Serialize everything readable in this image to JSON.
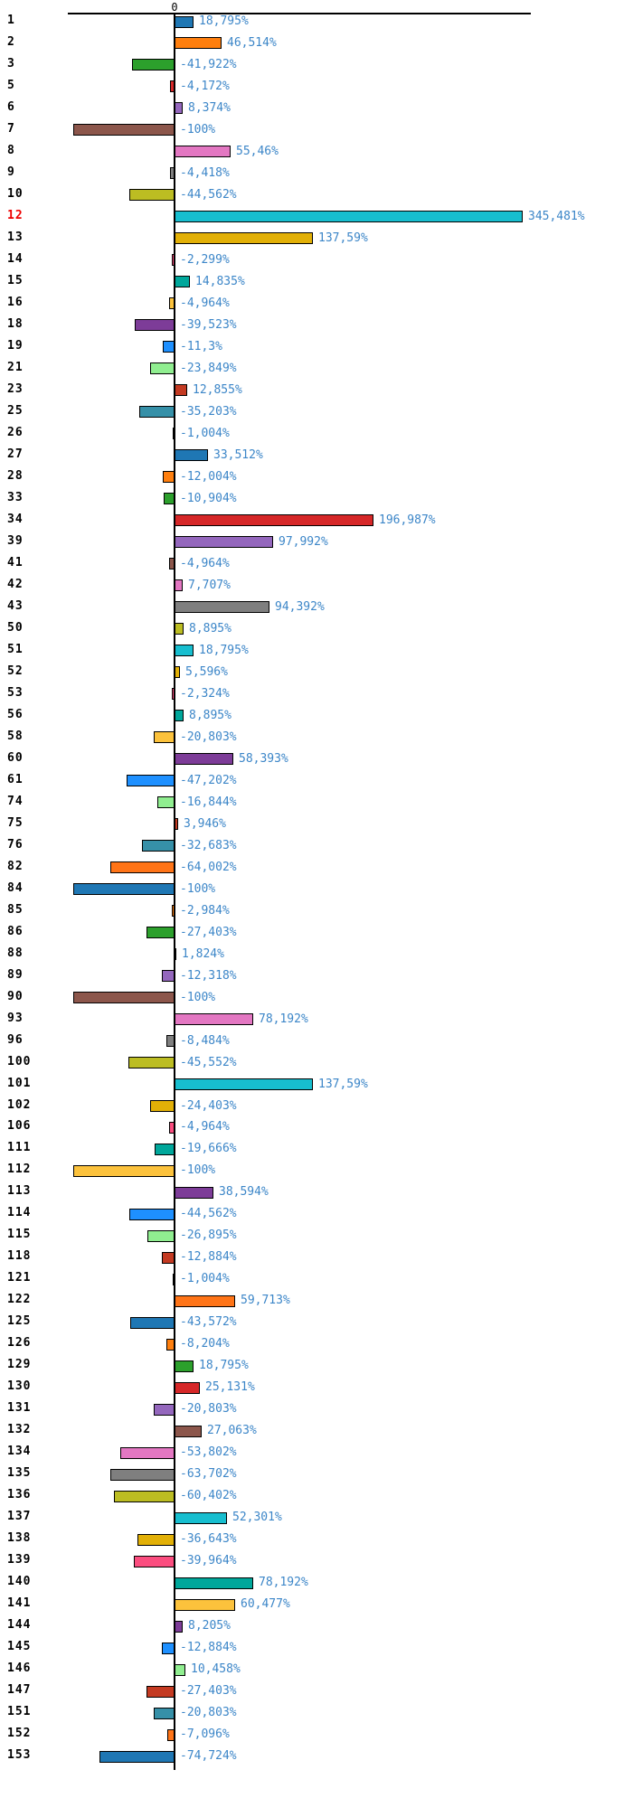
{
  "chart_data": {
    "type": "bar",
    "orientation": "horizontal",
    "title": "",
    "xlabel": "",
    "ylabel": "",
    "x_zero_label": "0",
    "value_suffix": "%",
    "decimal_separator": ",",
    "grid": false,
    "legend": false,
    "xlim": [
      -173,
      455
    ],
    "axis_color": "#000000",
    "value_label_color": "#3c86c8",
    "row_label_color": "#000000",
    "highlight_row_label_color": "#ee0000",
    "palette_cycle": [
      "#1f77b4",
      "#ff7f0e",
      "#2ca02c",
      "#d62728",
      "#9467bd",
      "#8c564b",
      "#e377c2",
      "#7f7f7f",
      "#bcbd22",
      "#17becf",
      "#e2b007",
      "#fb4d7f",
      "#00a79b",
      "#fcc23c",
      "#7d3c98",
      "#1e90ff",
      "#90ee90",
      "#c43a22",
      "#3690a8",
      "#ff7417"
    ],
    "rows": [
      {
        "label": "1",
        "value": 18.795,
        "display": "18,795%",
        "color": "#1f77b4",
        "highlight": false
      },
      {
        "label": "2",
        "value": 46.514,
        "display": "46,514%",
        "color": "#ff7f0e",
        "highlight": false
      },
      {
        "label": "3",
        "value": -41.922,
        "display": "-41,922%",
        "color": "#2ca02c",
        "highlight": false
      },
      {
        "label": "5",
        "value": -4.172,
        "display": "-4,172%",
        "color": "#d62728",
        "highlight": false
      },
      {
        "label": "6",
        "value": 8.374,
        "display": "8,374%",
        "color": "#9467bd",
        "highlight": false
      },
      {
        "label": "7",
        "value": -100,
        "display": "-100%",
        "color": "#8c564b",
        "highlight": false
      },
      {
        "label": "8",
        "value": 55.46,
        "display": "55,46%",
        "color": "#e377c2",
        "highlight": false
      },
      {
        "label": "9",
        "value": -4.418,
        "display": "-4,418%",
        "color": "#7f7f7f",
        "highlight": false
      },
      {
        "label": "10",
        "value": -44.562,
        "display": "-44,562%",
        "color": "#bcbd22",
        "highlight": false
      },
      {
        "label": "12",
        "value": 345.481,
        "display": "345,481%",
        "color": "#17becf",
        "highlight": true
      },
      {
        "label": "13",
        "value": 137.59,
        "display": "137,59%",
        "color": "#e2b007",
        "highlight": false
      },
      {
        "label": "14",
        "value": -2.299,
        "display": "-2,299%",
        "color": "#fb4d7f",
        "highlight": false
      },
      {
        "label": "15",
        "value": 14.835,
        "display": "14,835%",
        "color": "#00a79b",
        "highlight": false
      },
      {
        "label": "16",
        "value": -4.964,
        "display": "-4,964%",
        "color": "#fcc23c",
        "highlight": false
      },
      {
        "label": "18",
        "value": -39.523,
        "display": "-39,523%",
        "color": "#7d3c98",
        "highlight": false
      },
      {
        "label": "19",
        "value": -11.3,
        "display": "-11,3%",
        "color": "#1e90ff",
        "highlight": false
      },
      {
        "label": "21",
        "value": -23.849,
        "display": "-23,849%",
        "color": "#90ee90",
        "highlight": false
      },
      {
        "label": "23",
        "value": 12.855,
        "display": "12,855%",
        "color": "#c43a22",
        "highlight": false
      },
      {
        "label": "25",
        "value": -35.203,
        "display": "-35,203%",
        "color": "#3690a8",
        "highlight": false
      },
      {
        "label": "26",
        "value": -1.004,
        "display": "-1,004%",
        "color": "#ff7417",
        "highlight": false
      },
      {
        "label": "27",
        "value": 33.512,
        "display": "33,512%",
        "color": "#1f77b4",
        "highlight": false
      },
      {
        "label": "28",
        "value": -12.004,
        "display": "-12,004%",
        "color": "#ff7f0e",
        "highlight": false
      },
      {
        "label": "33",
        "value": -10.904,
        "display": "-10,904%",
        "color": "#2ca02c",
        "highlight": false
      },
      {
        "label": "34",
        "value": 196.987,
        "display": "196,987%",
        "color": "#d62728",
        "highlight": false
      },
      {
        "label": "39",
        "value": 97.992,
        "display": "97,992%",
        "color": "#9467bd",
        "highlight": false
      },
      {
        "label": "41",
        "value": -4.964,
        "display": "-4,964%",
        "color": "#8c564b",
        "highlight": false
      },
      {
        "label": "42",
        "value": 7.707,
        "display": "7,707%",
        "color": "#e377c2",
        "highlight": false
      },
      {
        "label": "43",
        "value": 94.392,
        "display": "94,392%",
        "color": "#7f7f7f",
        "highlight": false
      },
      {
        "label": "50",
        "value": 8.895,
        "display": "8,895%",
        "color": "#bcbd22",
        "highlight": false
      },
      {
        "label": "51",
        "value": 18.795,
        "display": "18,795%",
        "color": "#17becf",
        "highlight": false
      },
      {
        "label": "52",
        "value": 5.596,
        "display": "5,596%",
        "color": "#e2b007",
        "highlight": false
      },
      {
        "label": "53",
        "value": -2.324,
        "display": "-2,324%",
        "color": "#fb4d7f",
        "highlight": false
      },
      {
        "label": "56",
        "value": 8.895,
        "display": "8,895%",
        "color": "#00a79b",
        "highlight": false
      },
      {
        "label": "58",
        "value": -20.803,
        "display": "-20,803%",
        "color": "#fcc23c",
        "highlight": false
      },
      {
        "label": "60",
        "value": 58.393,
        "display": "58,393%",
        "color": "#7d3c98",
        "highlight": false
      },
      {
        "label": "61",
        "value": -47.202,
        "display": "-47,202%",
        "color": "#1e90ff",
        "highlight": false
      },
      {
        "label": "74",
        "value": -16.844,
        "display": "-16,844%",
        "color": "#90ee90",
        "highlight": false
      },
      {
        "label": "75",
        "value": 3.946,
        "display": "3,946%",
        "color": "#c43a22",
        "highlight": false
      },
      {
        "label": "76",
        "value": -32.683,
        "display": "-32,683%",
        "color": "#3690a8",
        "highlight": false
      },
      {
        "label": "82",
        "value": -64.002,
        "display": "-64,002%",
        "color": "#ff7417",
        "highlight": false
      },
      {
        "label": "84",
        "value": -100,
        "display": "-100%",
        "color": "#1f77b4",
        "highlight": false
      },
      {
        "label": "85",
        "value": -2.984,
        "display": "-2,984%",
        "color": "#ff7f0e",
        "highlight": false
      },
      {
        "label": "86",
        "value": -27.403,
        "display": "-27,403%",
        "color": "#2ca02c",
        "highlight": false
      },
      {
        "label": "88",
        "value": 1.824,
        "display": "1,824%",
        "color": "#d62728",
        "highlight": false
      },
      {
        "label": "89",
        "value": -12.318,
        "display": "-12,318%",
        "color": "#9467bd",
        "highlight": false
      },
      {
        "label": "90",
        "value": -100,
        "display": "-100%",
        "color": "#8c564b",
        "highlight": false
      },
      {
        "label": "93",
        "value": 78.192,
        "display": "78,192%",
        "color": "#e377c2",
        "highlight": false
      },
      {
        "label": "96",
        "value": -8.484,
        "display": "-8,484%",
        "color": "#7f7f7f",
        "highlight": false
      },
      {
        "label": "100",
        "value": -45.552,
        "display": "-45,552%",
        "color": "#bcbd22",
        "highlight": false
      },
      {
        "label": "101",
        "value": 137.59,
        "display": "137,59%",
        "color": "#17becf",
        "highlight": false
      },
      {
        "label": "102",
        "value": -24.403,
        "display": "-24,403%",
        "color": "#e2b007",
        "highlight": false
      },
      {
        "label": "106",
        "value": -4.964,
        "display": "-4,964%",
        "color": "#fb4d7f",
        "highlight": false
      },
      {
        "label": "111",
        "value": -19.666,
        "display": "-19,666%",
        "color": "#00a79b",
        "highlight": false
      },
      {
        "label": "112",
        "value": -100,
        "display": "-100%",
        "color": "#fcc23c",
        "highlight": false
      },
      {
        "label": "113",
        "value": 38.594,
        "display": "38,594%",
        "color": "#7d3c98",
        "highlight": false
      },
      {
        "label": "114",
        "value": -44.562,
        "display": "-44,562%",
        "color": "#1e90ff",
        "highlight": false
      },
      {
        "label": "115",
        "value": -26.895,
        "display": "-26,895%",
        "color": "#90ee90",
        "highlight": false
      },
      {
        "label": "118",
        "value": -12.884,
        "display": "-12,884%",
        "color": "#c43a22",
        "highlight": false
      },
      {
        "label": "121",
        "value": -1.004,
        "display": "-1,004%",
        "color": "#3690a8",
        "highlight": false
      },
      {
        "label": "122",
        "value": 59.713,
        "display": "59,713%",
        "color": "#ff7417",
        "highlight": false
      },
      {
        "label": "125",
        "value": -43.572,
        "display": "-43,572%",
        "color": "#1f77b4",
        "highlight": false
      },
      {
        "label": "126",
        "value": -8.204,
        "display": "-8,204%",
        "color": "#ff7f0e",
        "highlight": false
      },
      {
        "label": "129",
        "value": 18.795,
        "display": "18,795%",
        "color": "#2ca02c",
        "highlight": false
      },
      {
        "label": "130",
        "value": 25.131,
        "display": "25,131%",
        "color": "#d62728",
        "highlight": false
      },
      {
        "label": "131",
        "value": -20.803,
        "display": "-20,803%",
        "color": "#9467bd",
        "highlight": false
      },
      {
        "label": "132",
        "value": 27.063,
        "display": "27,063%",
        "color": "#8c564b",
        "highlight": false
      },
      {
        "label": "134",
        "value": -53.802,
        "display": "-53,802%",
        "color": "#e377c2",
        "highlight": false
      },
      {
        "label": "135",
        "value": -63.702,
        "display": "-63,702%",
        "color": "#7f7f7f",
        "highlight": false
      },
      {
        "label": "136",
        "value": -60.402,
        "display": "-60,402%",
        "color": "#bcbd22",
        "highlight": false
      },
      {
        "label": "137",
        "value": 52.301,
        "display": "52,301%",
        "color": "#17becf",
        "highlight": false
      },
      {
        "label": "138",
        "value": -36.643,
        "display": "-36,643%",
        "color": "#e2b007",
        "highlight": false
      },
      {
        "label": "139",
        "value": -39.964,
        "display": "-39,964%",
        "color": "#fb4d7f",
        "highlight": false
      },
      {
        "label": "140",
        "value": 78.192,
        "display": "78,192%",
        "color": "#00a79b",
        "highlight": false
      },
      {
        "label": "141",
        "value": 60.477,
        "display": "60,477%",
        "color": "#fcc23c",
        "highlight": false
      },
      {
        "label": "144",
        "value": 8.205,
        "display": "8,205%",
        "color": "#7d3c98",
        "highlight": false
      },
      {
        "label": "145",
        "value": -12.884,
        "display": "-12,884%",
        "color": "#1e90ff",
        "highlight": false
      },
      {
        "label": "146",
        "value": 10.458,
        "display": "10,458%",
        "color": "#90ee90",
        "highlight": false
      },
      {
        "label": "147",
        "value": -27.403,
        "display": "-27,403%",
        "color": "#c43a22",
        "highlight": false
      },
      {
        "label": "151",
        "value": -20.803,
        "display": "-20,803%",
        "color": "#3690a8",
        "highlight": false
      },
      {
        "label": "152",
        "value": -7.096,
        "display": "-7,096%",
        "color": "#ff7417",
        "highlight": false
      },
      {
        "label": "153",
        "value": -74.724,
        "display": "-74,724%",
        "color": "#1f77b4",
        "highlight": false
      }
    ]
  }
}
